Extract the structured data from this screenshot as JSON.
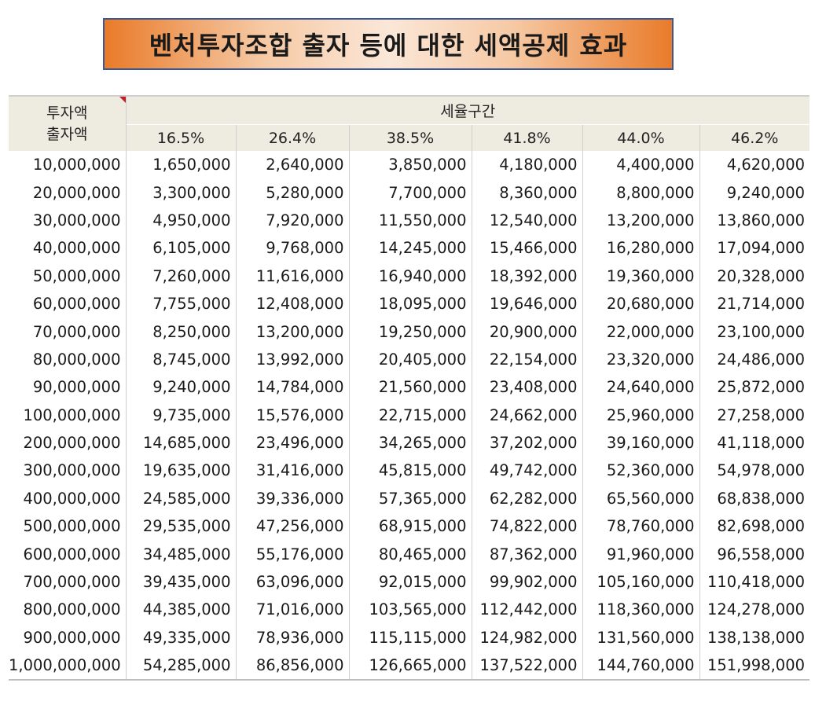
{
  "title": "벤처투자조합 출자 등에 대한 세액공제 효과",
  "header": {
    "row_header_line1": "투자액",
    "row_header_line2": "출자액",
    "group": "세율구간",
    "rates": [
      "16.5%",
      "26.4%",
      "38.5%",
      "41.8%",
      "44.0%",
      "46.2%"
    ]
  },
  "accent_colors": {
    "title_orange": "#e97b2a",
    "title_border": "#3b5998",
    "header_bg": "#eeebe0",
    "corner_marker": "#c0202a"
  },
  "rows": [
    [
      "10,000,000",
      "1,650,000",
      "2,640,000",
      "3,850,000",
      "4,180,000",
      "4,400,000",
      "4,620,000"
    ],
    [
      "20,000,000",
      "3,300,000",
      "5,280,000",
      "7,700,000",
      "8,360,000",
      "8,800,000",
      "9,240,000"
    ],
    [
      "30,000,000",
      "4,950,000",
      "7,920,000",
      "11,550,000",
      "12,540,000",
      "13,200,000",
      "13,860,000"
    ],
    [
      "40,000,000",
      "6,105,000",
      "9,768,000",
      "14,245,000",
      "15,466,000",
      "16,280,000",
      "17,094,000"
    ],
    [
      "50,000,000",
      "7,260,000",
      "11,616,000",
      "16,940,000",
      "18,392,000",
      "19,360,000",
      "20,328,000"
    ],
    [
      "60,000,000",
      "7,755,000",
      "12,408,000",
      "18,095,000",
      "19,646,000",
      "20,680,000",
      "21,714,000"
    ],
    [
      "70,000,000",
      "8,250,000",
      "13,200,000",
      "19,250,000",
      "20,900,000",
      "22,000,000",
      "23,100,000"
    ],
    [
      "80,000,000",
      "8,745,000",
      "13,992,000",
      "20,405,000",
      "22,154,000",
      "23,320,000",
      "24,486,000"
    ],
    [
      "90,000,000",
      "9,240,000",
      "14,784,000",
      "21,560,000",
      "23,408,000",
      "24,640,000",
      "25,872,000"
    ],
    [
      "100,000,000",
      "9,735,000",
      "15,576,000",
      "22,715,000",
      "24,662,000",
      "25,960,000",
      "27,258,000"
    ],
    [
      "200,000,000",
      "14,685,000",
      "23,496,000",
      "34,265,000",
      "37,202,000",
      "39,160,000",
      "41,118,000"
    ],
    [
      "300,000,000",
      "19,635,000",
      "31,416,000",
      "45,815,000",
      "49,742,000",
      "52,360,000",
      "54,978,000"
    ],
    [
      "400,000,000",
      "24,585,000",
      "39,336,000",
      "57,365,000",
      "62,282,000",
      "65,560,000",
      "68,838,000"
    ],
    [
      "500,000,000",
      "29,535,000",
      "47,256,000",
      "68,915,000",
      "74,822,000",
      "78,760,000",
      "82,698,000"
    ],
    [
      "600,000,000",
      "34,485,000",
      "55,176,000",
      "80,465,000",
      "87,362,000",
      "91,960,000",
      "96,558,000"
    ],
    [
      "700,000,000",
      "39,435,000",
      "63,096,000",
      "92,015,000",
      "99,902,000",
      "105,160,000",
      "110,418,000"
    ],
    [
      "800,000,000",
      "44,385,000",
      "71,016,000",
      "103,565,000",
      "112,442,000",
      "118,360,000",
      "124,278,000"
    ],
    [
      "900,000,000",
      "49,335,000",
      "78,936,000",
      "115,115,000",
      "124,982,000",
      "131,560,000",
      "138,138,000"
    ],
    [
      "1,000,000,000",
      "54,285,000",
      "86,856,000",
      "126,665,000",
      "137,522,000",
      "144,760,000",
      "151,998,000"
    ]
  ]
}
